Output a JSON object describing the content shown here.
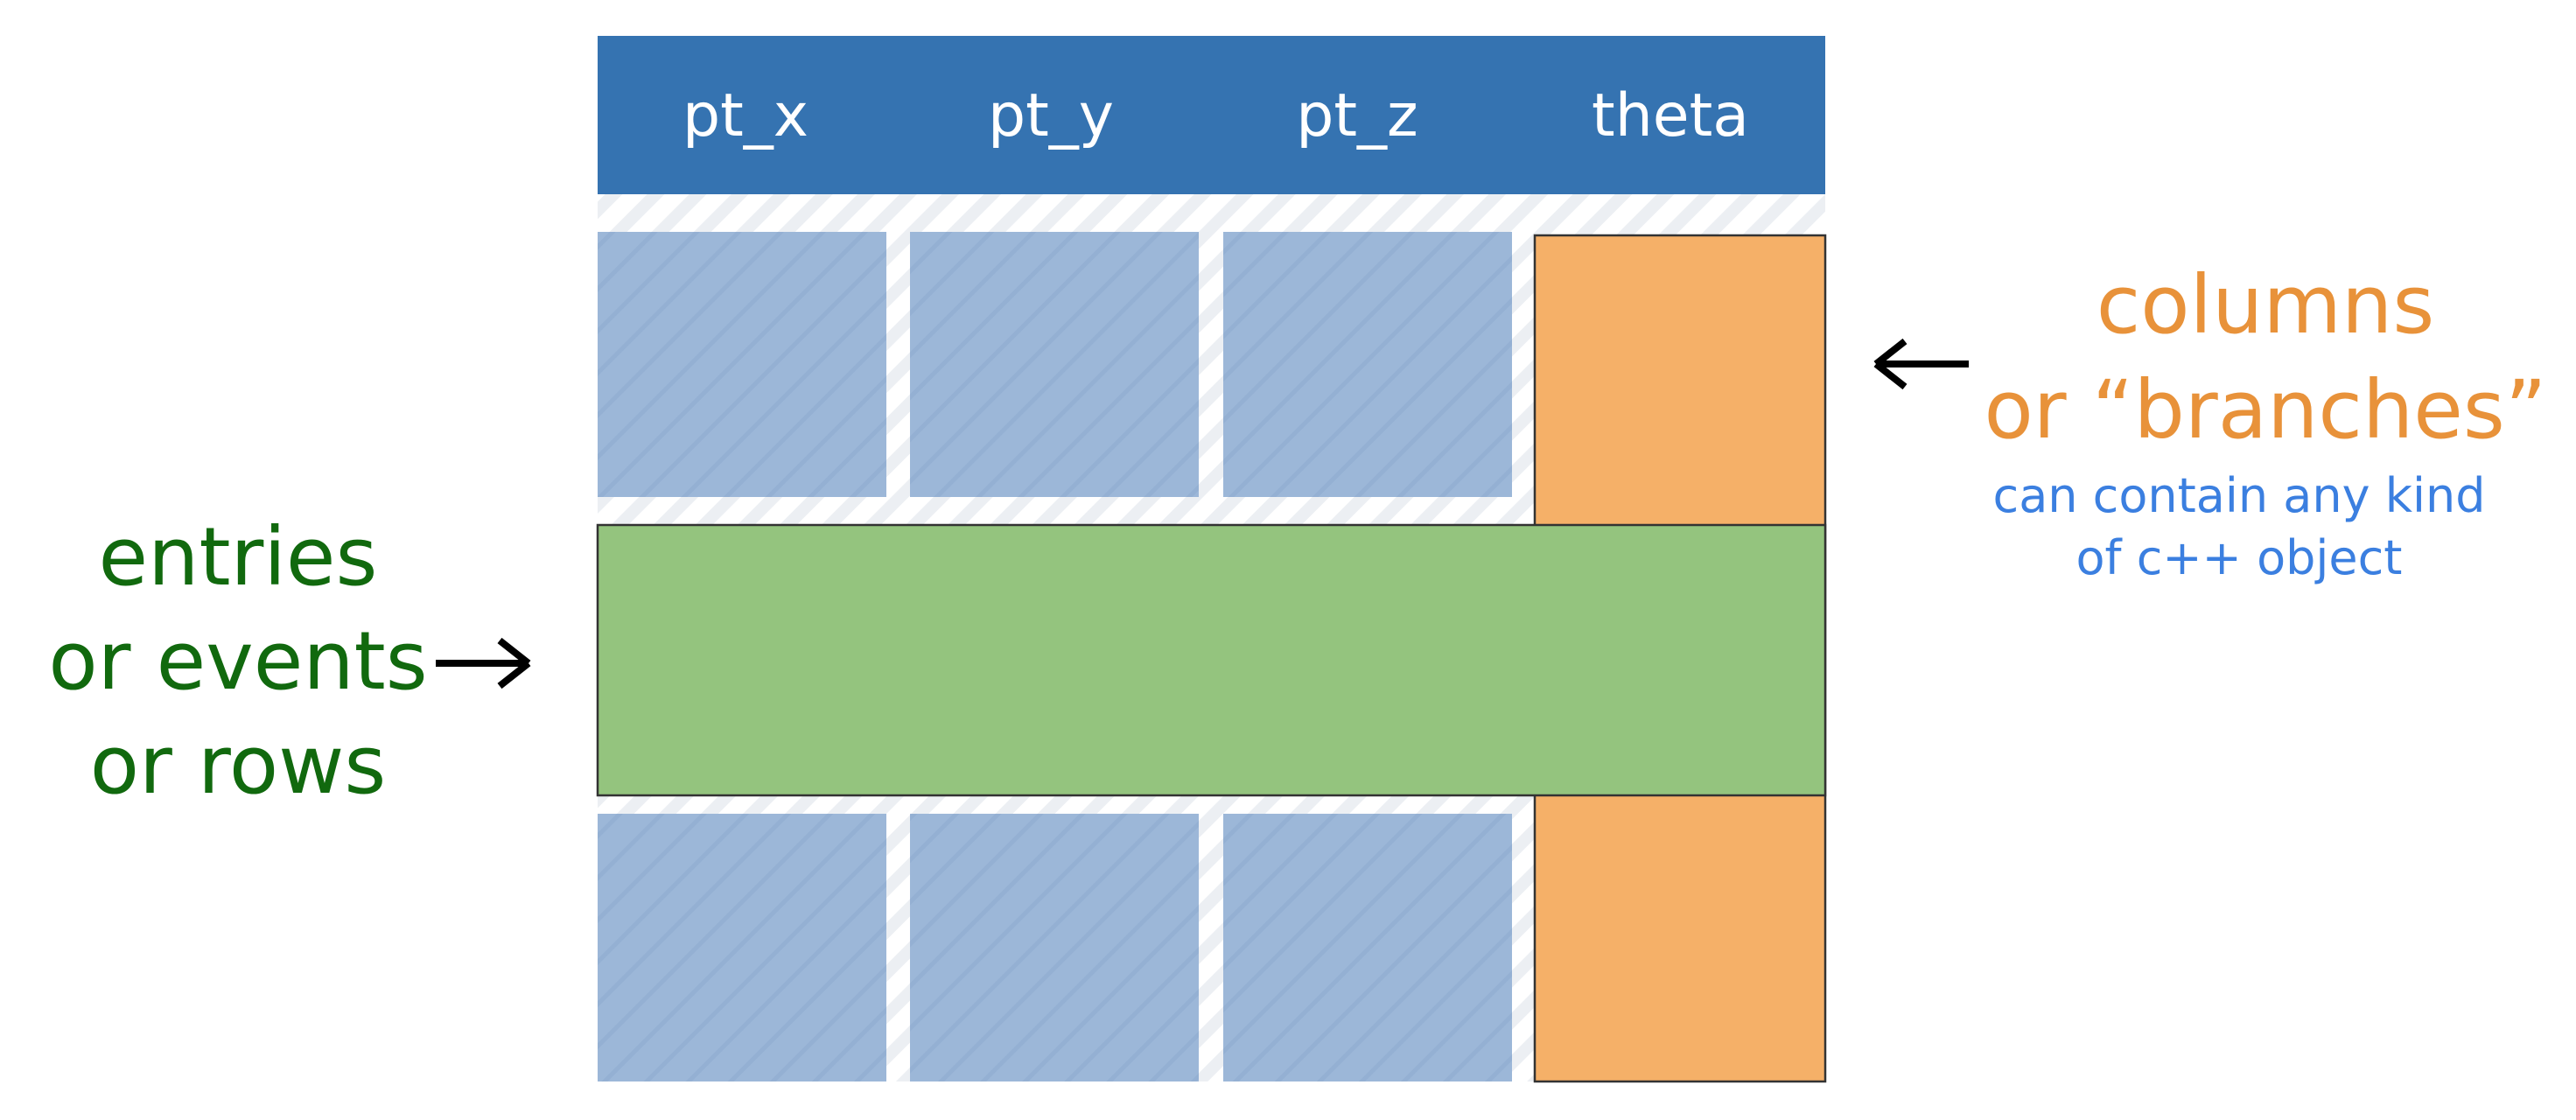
{
  "table": {
    "columns": [
      "pt_x",
      "pt_y",
      "pt_z",
      "theta"
    ],
    "header_color": "#3573B1",
    "cell_color": "#9CB7D8",
    "stripe_color": "#ECEFF3"
  },
  "highlight": {
    "column_label": "theta",
    "column_color": "#F5B068",
    "row_color": "#94C47E"
  },
  "annotations": {
    "columns": {
      "lines": [
        "columns",
        "or “branches”"
      ],
      "color": "#E8923A",
      "note_lines": [
        "can contain any kind",
        "of c++ object"
      ],
      "note_color": "#3B7FE0"
    },
    "rows": {
      "lines": [
        "entries",
        "or events",
        "or rows"
      ],
      "color": "#11690E"
    },
    "arrow_color": "#000000"
  }
}
